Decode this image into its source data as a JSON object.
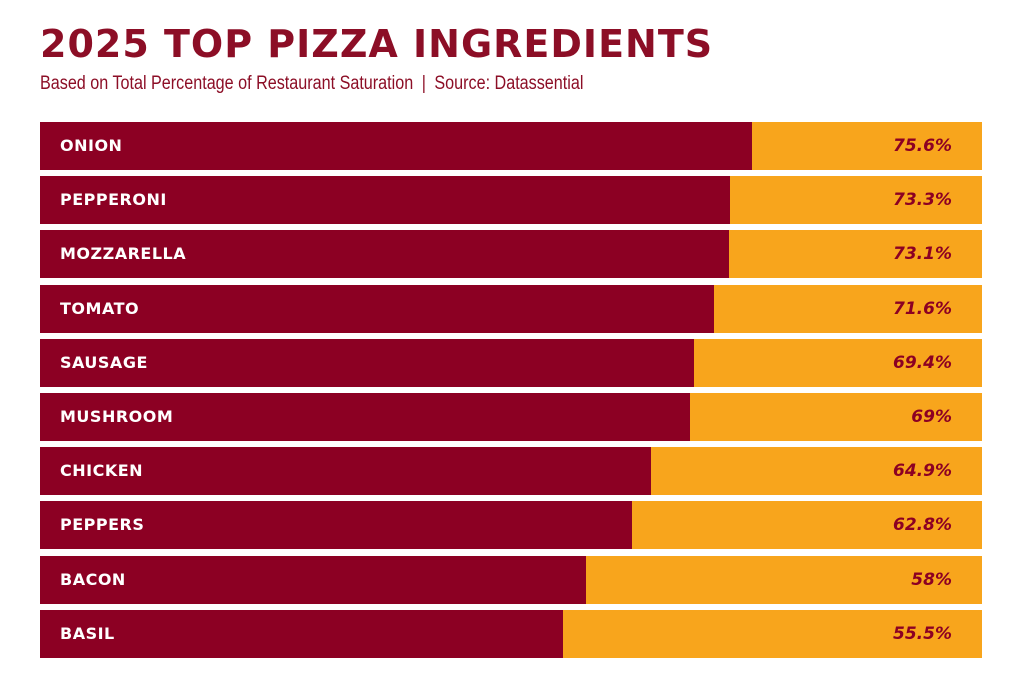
{
  "colors": {
    "title": "#8c0e26",
    "bar_fill": "#8c0023",
    "bar_track": "#f8a51c",
    "bar_label_text": "#ffffff",
    "value_text": "#8c0023"
  },
  "chart_data": {
    "type": "bar",
    "orientation": "horizontal",
    "title": "2025 TOP PIZZA INGREDIENTS",
    "subtitle": "Based on Total Percentage of Restaurant Saturation",
    "source": "Source: Datassential",
    "xlim": [
      0,
      100
    ],
    "unit": "%",
    "grid": false,
    "categories": [
      "ONION",
      "PEPPERONI",
      "MOZZARELLA",
      "TOMATO",
      "SAUSAGE",
      "MUSHROOM",
      "CHICKEN",
      "PEPPERS",
      "BACON",
      "BASIL"
    ],
    "values": [
      75.6,
      73.3,
      73.1,
      71.6,
      69.4,
      69,
      64.9,
      62.8,
      58,
      55.5
    ],
    "value_labels": [
      "75.6%",
      "73.3%",
      "73.1%",
      "71.6%",
      "69.4%",
      "69%",
      "64.9%",
      "62.8%",
      "58%",
      "55.5%"
    ]
  }
}
